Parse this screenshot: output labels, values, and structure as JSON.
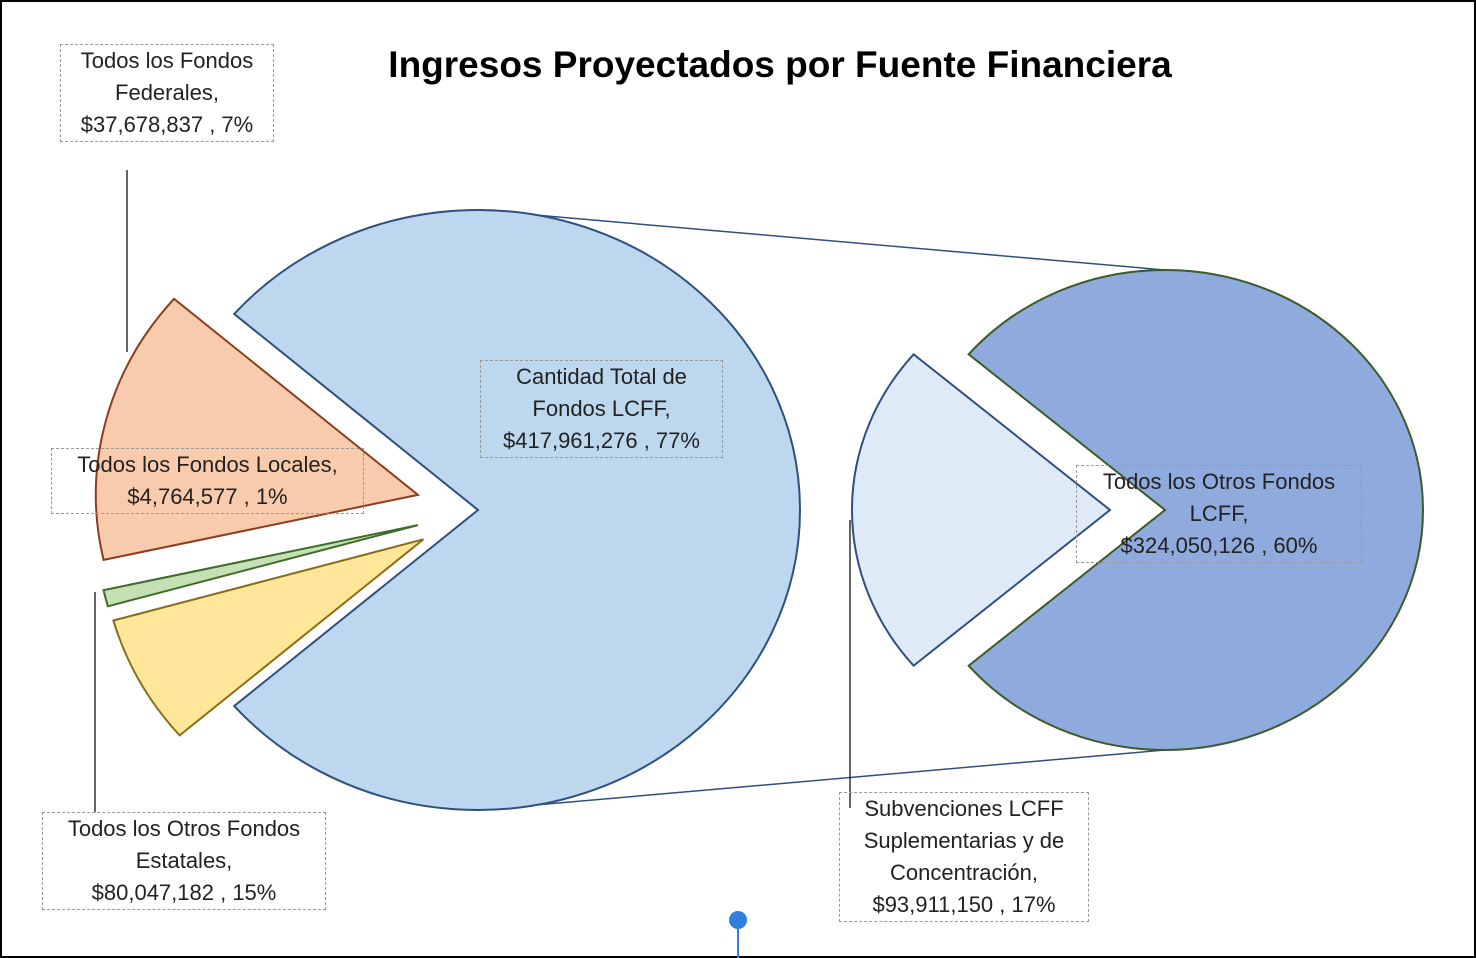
{
  "chart_data": {
    "type": "pie",
    "title": "Ingresos Proyectados por Fuente Financiera",
    "categories": [
      "Cantidad Total de Fondos LCFF,",
      "Todos los Fondos Federales,",
      "Todos los Fondos Locales,",
      "Todos los Otros Fondos Estatales,"
    ],
    "values": [
      417961276,
      37678837,
      4764577,
      80047182
    ],
    "value_labels": [
      "$417,961,276 , 77%",
      "$37,678,837 , 7%",
      "$4,764,577 , 1%",
      "$80,047,182 , 15%"
    ],
    "colors": [
      "#bdd7ee",
      "#ffe699",
      "#c5e0b4",
      "#f8cbad"
    ],
    "secondary": {
      "categories": [
        "Todos los Otros Fondos LCFF,",
        "Subvenciones LCFF Suplementarias y de Concentración,"
      ],
      "values": [
        324050126,
        93911150
      ],
      "value_labels": [
        "$324,050,126 , 60%",
        "$93,911,150 , 17%"
      ],
      "colors": [
        "#8faadc",
        "#deebf7"
      ]
    }
  }
}
